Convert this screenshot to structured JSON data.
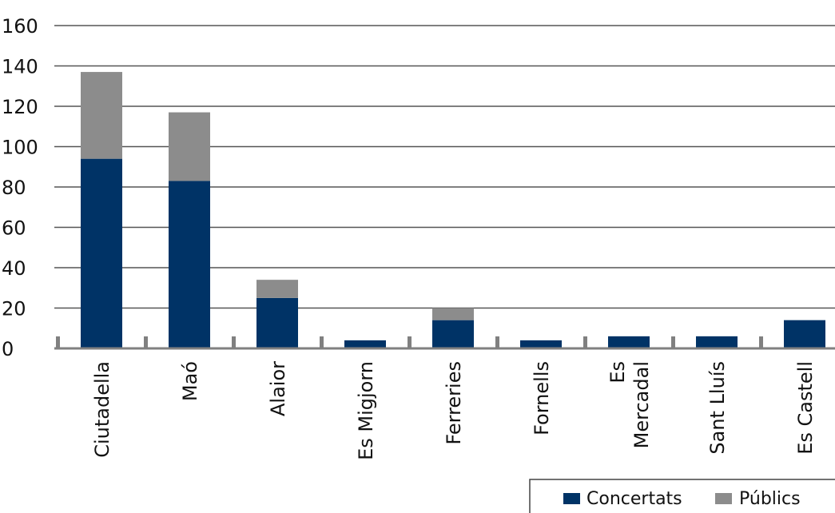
{
  "chart_data": {
    "type": "bar",
    "stacked": true,
    "title": "",
    "xlabel": "",
    "ylabel": "",
    "ylim": [
      0,
      160
    ],
    "yticks": [
      0,
      20,
      40,
      60,
      80,
      100,
      120,
      140,
      160
    ],
    "grid": true,
    "legend_position": "bottom-right",
    "categories": [
      [
        "Ciutadella"
      ],
      [
        "Maó"
      ],
      [
        "Alaior"
      ],
      [
        "Es Migjorn"
      ],
      [
        "Ferreries"
      ],
      [
        "Fornells"
      ],
      [
        "Es",
        "Mercadal"
      ],
      [
        "Sant Lluís"
      ],
      [
        "Es Castell"
      ]
    ],
    "series": [
      {
        "name": "Concertats",
        "color": "#003366",
        "values": [
          94,
          83,
          25,
          4,
          14,
          4,
          6,
          6,
          14
        ]
      },
      {
        "name": "Públics",
        "color": "#8c8c8c",
        "values": [
          43,
          34,
          9,
          0,
          6,
          0,
          0,
          0,
          0
        ]
      }
    ],
    "colors": {
      "grid": "#555555",
      "axis": "#808080"
    }
  }
}
